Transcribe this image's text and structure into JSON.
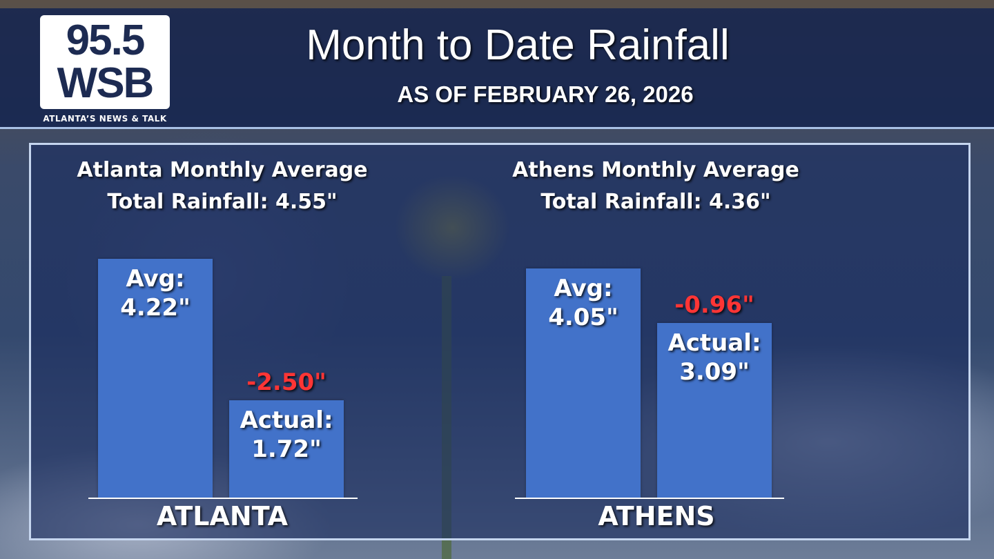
{
  "logo": {
    "line1": "95.5",
    "line2": "WSB",
    "tagline": "ATLANTA’S NEWS & TALK"
  },
  "header": {
    "title": "Month to Date Rainfall",
    "subtitle": "AS OF FEBRUARY 26, 2026"
  },
  "colors": {
    "bar": "#4272c9",
    "deficit": "#ff3535",
    "header": "#16264f"
  },
  "chart_data": [
    {
      "type": "bar",
      "title": "Atlanta Monthly Average Total Rainfall: 4.55\"",
      "title_line1": "Atlanta Monthly Average",
      "title_line2": "Total Rainfall: 4.55\"",
      "xlabel": "ATLANTA",
      "unit": "in",
      "monthly_average_total": 4.55,
      "bars": [
        {
          "name": "Avg",
          "label1": "Avg:",
          "label2": "4.22\"",
          "value": 4.22
        },
        {
          "name": "Actual",
          "label1": "Actual:",
          "label2": "1.72\"",
          "value": 1.72
        }
      ],
      "difference": {
        "label": "-2.50\"",
        "value": -2.5
      }
    },
    {
      "type": "bar",
      "title": "Athens Monthly Average Total Rainfall: 4.36\"",
      "title_line1": "Athens Monthly Average",
      "title_line2": "Total Rainfall: 4.36\"",
      "xlabel": "ATHENS",
      "unit": "in",
      "monthly_average_total": 4.36,
      "bars": [
        {
          "name": "Avg",
          "label1": "Avg:",
          "label2": "4.05\"",
          "value": 4.05
        },
        {
          "name": "Actual",
          "label1": "Actual:",
          "label2": "3.09\"",
          "value": 3.09
        }
      ],
      "difference": {
        "label": "-0.96\"",
        "value": -0.96
      }
    }
  ]
}
